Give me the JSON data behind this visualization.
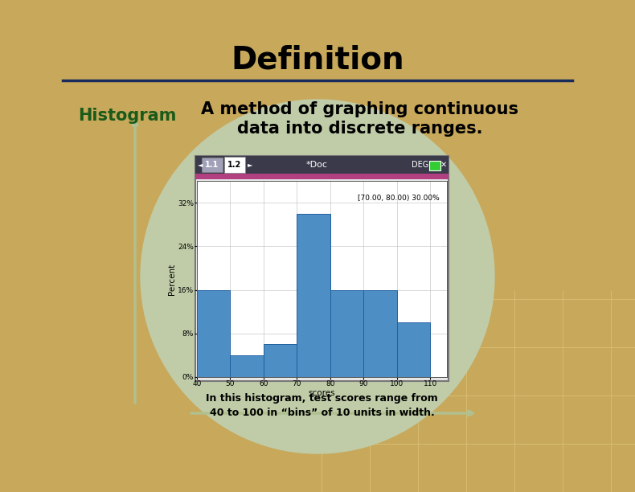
{
  "title": "Definition",
  "term": "Histogram",
  "definition_line1": "A method of graphing continuous",
  "definition_line2": "data into discrete ranges.",
  "caption_line1": "In this histogram, test scores range from",
  "caption_line2": "40 to 100 in “bins” of 10 units in width.",
  "histogram": {
    "bins": [
      40,
      50,
      60,
      70,
      80,
      90,
      100,
      110
    ],
    "values": [
      16,
      4,
      6,
      30,
      16,
      16,
      10
    ],
    "bar_color": "#4d8ec4",
    "bar_edge_color": "#2060a0",
    "xlabel": "scores",
    "ylabel": "Percent",
    "yticks": [
      0,
      8,
      16,
      24,
      32
    ],
    "ytick_labels": [
      "0%",
      "8%",
      "16%",
      "24%",
      "32%"
    ],
    "xticks": [
      40,
      50,
      60,
      70,
      80,
      90,
      100,
      110
    ],
    "tooltip": "[70.00, 80.00) 30.00%",
    "titlebar_color": "#3a3a4a",
    "pink_bar_color": "#b04080",
    "tab1_text": "1.1",
    "tab2_text": "1.2",
    "doc_text": "*Doc",
    "deg_text": "DEG"
  },
  "bg_outer_color": "#c8a85a",
  "bg_inner_color": "#e4ecd0",
  "circle_color": "#c0cca8",
  "title_underline_color": "#1a2a5a",
  "term_color": "#1a5a1a",
  "definition_color": "#000000",
  "caption_color": "#000000",
  "axis_arrow_color": "#b0c090",
  "grid_color": "#d8e0c0"
}
